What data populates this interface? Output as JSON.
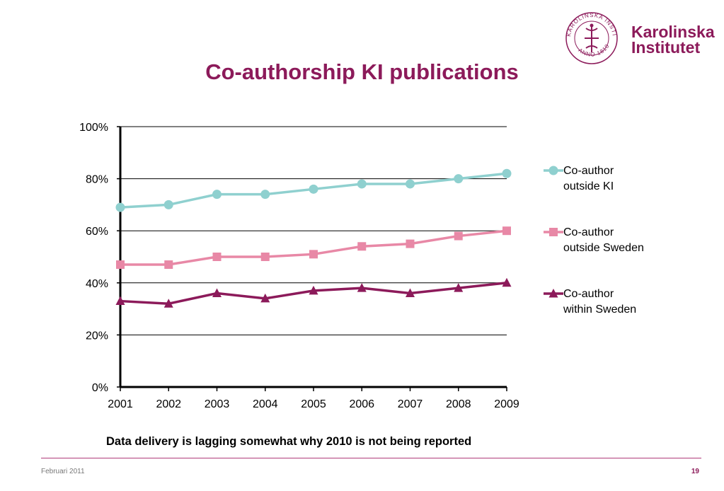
{
  "slide": {
    "title": "Co-authorship KI publications",
    "note": "Data delivery is lagging somewhat why 2010 is not being reported",
    "footer_left": "Februari 2011",
    "page_number": "19"
  },
  "logo": {
    "line1": "Karolinska",
    "line2": "Institutet",
    "seal_text": "KAROLINSKA INSTITUTET ANNO 1810",
    "color": "#8c1a5a"
  },
  "chart_data": {
    "type": "line",
    "title": "",
    "xlabel": "",
    "ylabel": "",
    "categories": [
      "2001",
      "2002",
      "2003",
      "2004",
      "2005",
      "2006",
      "2007",
      "2008",
      "2009"
    ],
    "ylim": [
      0,
      100
    ],
    "y_ticks": [
      "0%",
      "20%",
      "40%",
      "60%",
      "80%",
      "100%"
    ],
    "y_tick_values": [
      0,
      20,
      40,
      60,
      80,
      100
    ],
    "grid": true,
    "legend_position": "right",
    "series": [
      {
        "name_line1": "Co-author",
        "name_line2": "outside KI",
        "color": "#8fd0cf",
        "marker": "circle",
        "values": [
          69,
          70,
          74,
          74,
          76,
          78,
          78,
          80,
          82
        ]
      },
      {
        "name_line1": "Co-author",
        "name_line2": "outside Sweden",
        "color": "#e888a6",
        "marker": "square",
        "values": [
          47,
          47,
          50,
          50,
          51,
          54,
          55,
          58,
          60
        ]
      },
      {
        "name_line1": "Co-author",
        "name_line2": "within Sweden",
        "color": "#8c1a5a",
        "marker": "triangle",
        "values": [
          33,
          32,
          36,
          34,
          37,
          38,
          36,
          38,
          40
        ]
      }
    ]
  }
}
